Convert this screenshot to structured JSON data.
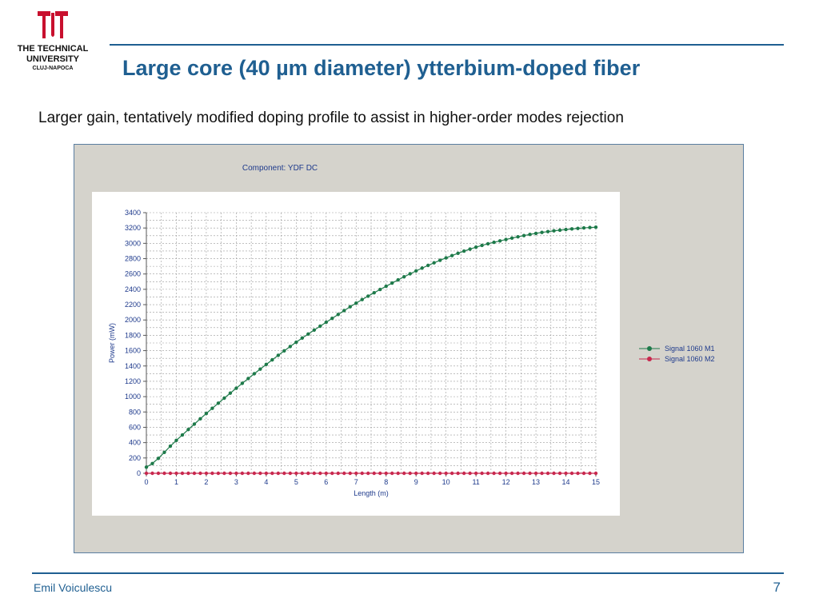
{
  "logo": {
    "line1": "THE TECHNICAL",
    "line2": "UNIVERSITY",
    "line3": "CLUJ-NAPOCA",
    "color": "#c8102e"
  },
  "slide": {
    "title": "Large core (40 µm diameter) ytterbium-doped fiber",
    "subtitle": "Larger gain, tentatively modified doping profile to assist in higher-order modes rejection",
    "author": "Emil Voiculescu",
    "page": "7"
  },
  "chart_data": {
    "type": "line",
    "title": "Component: YDF DC",
    "xlabel": "Length (m)",
    "ylabel": "Power (mW)",
    "xlim": [
      0,
      15
    ],
    "ylim": [
      0,
      3400
    ],
    "xticks": [
      "0",
      "1",
      "2",
      "3",
      "4",
      "5",
      "6",
      "7",
      "8",
      "9",
      "10",
      "11",
      "12",
      "13",
      "14",
      "15"
    ],
    "yticks": [
      "0",
      "200",
      "400",
      "600",
      "800",
      "1000",
      "1200",
      "1400",
      "1600",
      "1800",
      "2000",
      "2200",
      "2400",
      "2600",
      "2800",
      "3000",
      "3200",
      "3400"
    ],
    "grid": true,
    "legend_position": "right",
    "series": [
      {
        "name": "Signal 1060 M1",
        "color": "#1e7a4a",
        "x": [
          0,
          1,
          2,
          3,
          4,
          5,
          6,
          7,
          8,
          9,
          10,
          11,
          12,
          13,
          14,
          15
        ],
        "y": [
          80,
          430,
          780,
          1110,
          1420,
          1710,
          1970,
          2220,
          2440,
          2640,
          2810,
          2950,
          3050,
          3130,
          3180,
          3210
        ]
      },
      {
        "name": "Signal 1060 M2",
        "color": "#c8284e",
        "x": [
          0,
          1,
          2,
          3,
          4,
          5,
          6,
          7,
          8,
          9,
          10,
          11,
          12,
          13,
          14,
          15
        ],
        "y": [
          0,
          0,
          0,
          0,
          0,
          0,
          0,
          0,
          0,
          0,
          0,
          0,
          0,
          0,
          0,
          0
        ]
      }
    ]
  }
}
